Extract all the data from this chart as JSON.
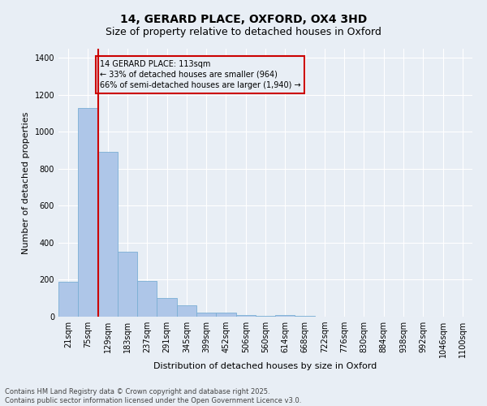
{
  "title1": "14, GERARD PLACE, OXFORD, OX4 3HD",
  "title2": "Size of property relative to detached houses in Oxford",
  "xlabel": "Distribution of detached houses by size in Oxford",
  "ylabel": "Number of detached properties",
  "categories": [
    "21sqm",
    "75sqm",
    "129sqm",
    "183sqm",
    "237sqm",
    "291sqm",
    "345sqm",
    "399sqm",
    "452sqm",
    "506sqm",
    "560sqm",
    "614sqm",
    "668sqm",
    "722sqm",
    "776sqm",
    "830sqm",
    "884sqm",
    "938sqm",
    "992sqm",
    "1046sqm",
    "1100sqm"
  ],
  "values": [
    190,
    1130,
    890,
    350,
    195,
    100,
    60,
    22,
    20,
    10,
    5,
    8,
    5,
    0,
    0,
    0,
    0,
    0,
    0,
    0,
    0
  ],
  "bar_color": "#aec6e8",
  "bar_edge_color": "#7aafd4",
  "vline_color": "#cc0000",
  "annotation_text": "14 GERARD PLACE: 113sqm\n← 33% of detached houses are smaller (964)\n66% of semi-detached houses are larger (1,940) →",
  "annotation_box_color": "#cc0000",
  "background_color": "#e8eef5",
  "grid_color": "#ffffff",
  "ylim": [
    0,
    1450
  ],
  "yticks": [
    0,
    200,
    400,
    600,
    800,
    1000,
    1200,
    1400
  ],
  "footer1": "Contains HM Land Registry data © Crown copyright and database right 2025.",
  "footer2": "Contains public sector information licensed under the Open Government Licence v3.0.",
  "title_fontsize": 10,
  "subtitle_fontsize": 9,
  "axis_label_fontsize": 8,
  "tick_fontsize": 7,
  "annot_fontsize": 7,
  "footer_fontsize": 6
}
